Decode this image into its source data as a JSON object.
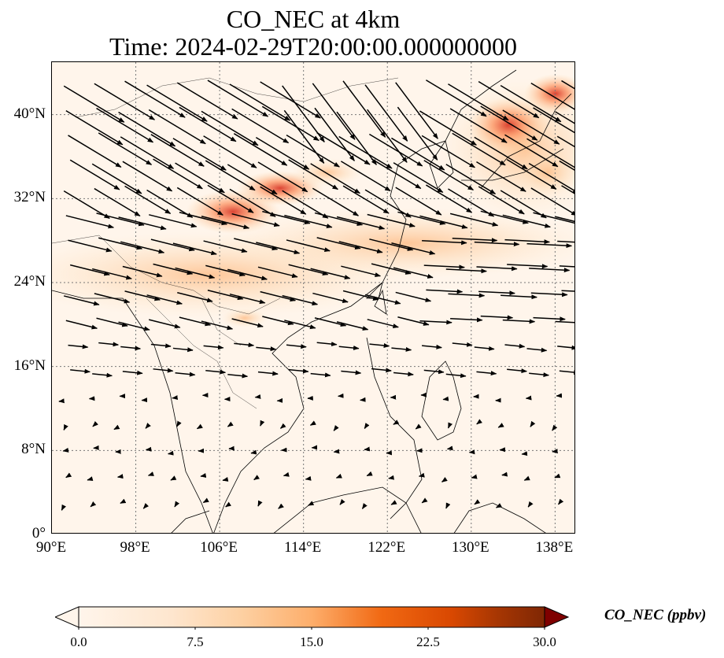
{
  "title_line1": "CO_NEC at 4km",
  "title_line2": "Time: 2024-02-29T20:00:00.000000000",
  "map": {
    "lon_range": [
      90,
      140
    ],
    "lat_range": [
      0,
      45
    ],
    "lat_ticks": [
      {
        "value": 0,
        "label": "0°"
      },
      {
        "value": 8,
        "label": "8°N"
      },
      {
        "value": 16,
        "label": "16°N"
      },
      {
        "value": 24,
        "label": "24°N"
      },
      {
        "value": 32,
        "label": "32°N"
      },
      {
        "value": 40,
        "label": "40°N"
      }
    ],
    "lon_ticks": [
      {
        "value": 90,
        "label": "90°E"
      },
      {
        "value": 98,
        "label": "98°E"
      },
      {
        "value": 106,
        "label": "106°E"
      },
      {
        "value": 114,
        "label": "114°E"
      },
      {
        "value": 122,
        "label": "122°E"
      },
      {
        "value": 130,
        "label": "130°E"
      },
      {
        "value": 138,
        "label": "138°E"
      }
    ],
    "gridlines": "dotted",
    "wind_vectors": "black arrows (westerly flow north of ~18°N, weak winds in the south)",
    "co_plumes": "elevated CO over central/eastern China (~30–34°N), Korea and Japan"
  },
  "colorbar": {
    "title": "CO_NEC (ppbv)",
    "min": 0,
    "max": 30,
    "extend": "both",
    "ticks": [
      "0.0",
      "7.5",
      "15.0",
      "22.5",
      "30.0"
    ],
    "colormap": "Oranges-to-red",
    "colors": [
      "#fff5eb",
      "#fdd49e",
      "#fdbb84",
      "#fc8d59",
      "#ef6548",
      "#d7301f",
      "#b30000",
      "#7f0000"
    ]
  }
}
